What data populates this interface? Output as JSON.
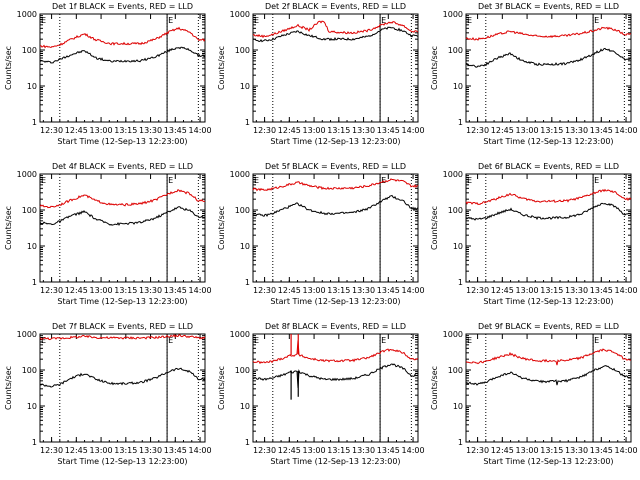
{
  "chart_data": [
    {
      "type": "line",
      "title": "Det 1f BLACK = Events, RED = LLD",
      "xlabel": "Start Time (12-Sep-13 12:23:00)",
      "ylabel": "Counts/sec",
      "yscale": "log",
      "ylim": [
        1,
        1000
      ],
      "xlim": [
        12.383,
        14.05
      ],
      "x_ticks": [
        "12:30",
        "12:45",
        "13:00",
        "13:15",
        "13:30",
        "13:45",
        "14:00"
      ],
      "y_ticks": [
        "1",
        "10",
        "100",
        "1000"
      ],
      "markers": {
        "E": [
          12.383,
          13.667
        ],
        "dotted_lines": [
          12.583,
          13.667,
          13.983
        ]
      },
      "series": [
        {
          "name": "Events",
          "color": "#000000",
          "x": [
            12.383,
            12.5,
            12.583,
            12.7,
            12.833,
            12.95,
            13.1,
            13.25,
            13.4,
            13.55,
            13.7,
            13.783,
            13.9,
            13.983
          ],
          "values": [
            50,
            45,
            55,
            75,
            95,
            60,
            48,
            50,
            50,
            65,
            100,
            120,
            100,
            70
          ]
        },
        {
          "name": "LLD",
          "color": "#dd0000",
          "x": [
            12.383,
            12.5,
            12.583,
            12.7,
            12.833,
            12.95,
            13.1,
            13.25,
            13.4,
            13.55,
            13.7,
            13.783,
            13.9,
            13.983
          ],
          "values": [
            130,
            120,
            140,
            200,
            280,
            190,
            150,
            150,
            150,
            200,
            330,
            400,
            310,
            190
          ]
        }
      ]
    },
    {
      "type": "line",
      "title": "Det 2f BLACK = Events, RED = LLD",
      "xlabel": "Start Time (12-Sep-13 12:23:00)",
      "ylabel": "Counts/sec",
      "yscale": "log",
      "ylim": [
        1,
        1000
      ],
      "xlim": [
        12.383,
        14.05
      ],
      "x_ticks": [
        "12:30",
        "12:45",
        "13:00",
        "13:15",
        "13:30",
        "13:45",
        "14:00"
      ],
      "y_ticks": [
        "1",
        "10",
        "100",
        "1000"
      ],
      "markers": {
        "E": [
          12.383,
          13.667
        ],
        "dotted_lines": [
          12.583,
          13.667,
          13.983
        ]
      },
      "series": [
        {
          "name": "Events",
          "color": "#000000",
          "x": [
            12.383,
            12.5,
            12.583,
            12.7,
            12.833,
            12.95,
            13.1,
            13.25,
            13.4,
            13.55,
            13.7,
            13.783,
            13.9,
            13.983
          ],
          "values": [
            190,
            180,
            200,
            260,
            330,
            250,
            200,
            200,
            200,
            240,
            380,
            420,
            340,
            250
          ]
        },
        {
          "name": "LLD",
          "color": "#dd0000",
          "x": [
            12.383,
            12.5,
            12.583,
            12.7,
            12.833,
            12.95,
            13.05,
            13.1,
            13.15,
            13.25,
            13.4,
            13.55,
            13.7,
            13.783,
            13.9,
            13.983
          ],
          "values": [
            260,
            240,
            270,
            350,
            480,
            360,
            600,
            620,
            330,
            310,
            300,
            350,
            520,
            600,
            480,
            330
          ]
        }
      ]
    },
    {
      "type": "line",
      "title": "Det 3f BLACK = Events, RED = LLD",
      "xlabel": "Start Time (12-Sep-13 12:23:00)",
      "ylabel": "Counts/sec",
      "yscale": "log",
      "ylim": [
        1,
        1000
      ],
      "xlim": [
        12.383,
        14.05
      ],
      "x_ticks": [
        "12:30",
        "12:45",
        "13:00",
        "13:15",
        "13:30",
        "13:45",
        "14:00"
      ],
      "y_ticks": [
        "1",
        "10",
        "100",
        "1000"
      ],
      "markers": {
        "E": [
          12.383,
          13.667
        ],
        "dotted_lines": [
          12.583,
          13.667,
          13.983
        ]
      },
      "series": [
        {
          "name": "Events",
          "color": "#000000",
          "x": [
            12.383,
            12.5,
            12.583,
            12.7,
            12.833,
            12.95,
            13.1,
            13.25,
            13.4,
            13.55,
            13.7,
            13.783,
            13.9,
            13.983
          ],
          "values": [
            40,
            35,
            40,
            60,
            80,
            50,
            40,
            40,
            42,
            55,
            85,
            110,
            85,
            55
          ]
        },
        {
          "name": "LLD",
          "color": "#dd0000",
          "x": [
            12.383,
            12.5,
            12.583,
            12.7,
            12.833,
            12.95,
            13.1,
            13.25,
            13.4,
            13.55,
            13.7,
            13.783,
            13.9,
            13.983
          ],
          "values": [
            210,
            200,
            220,
            270,
            330,
            280,
            240,
            240,
            250,
            290,
            360,
            420,
            360,
            270
          ]
        }
      ]
    },
    {
      "type": "line",
      "title": "Det 4f BLACK = Events, RED = LLD",
      "xlabel": "Start Time (12-Sep-13 12:23:00)",
      "ylabel": "Counts/sec",
      "yscale": "log",
      "ylim": [
        1,
        1000
      ],
      "xlim": [
        12.383,
        14.05
      ],
      "x_ticks": [
        "12:30",
        "12:45",
        "13:00",
        "13:15",
        "13:30",
        "13:45",
        "14:00"
      ],
      "y_ticks": [
        "1",
        "10",
        "100",
        "1000"
      ],
      "markers": {
        "E": [
          12.383,
          13.667
        ],
        "dotted_lines": [
          12.583,
          13.667,
          13.983
        ]
      },
      "series": [
        {
          "name": "Events",
          "color": "#000000",
          "x": [
            12.383,
            12.5,
            12.583,
            12.7,
            12.833,
            12.95,
            13.1,
            13.25,
            13.4,
            13.55,
            13.7,
            13.783,
            13.9,
            13.983
          ],
          "values": [
            45,
            40,
            48,
            70,
            90,
            55,
            40,
            42,
            45,
            60,
            95,
            120,
            95,
            65
          ]
        },
        {
          "name": "LLD",
          "color": "#dd0000",
          "x": [
            12.383,
            12.5,
            12.583,
            12.7,
            12.833,
            12.95,
            13.1,
            13.25,
            13.4,
            13.55,
            13.7,
            13.783,
            13.9,
            13.983
          ],
          "values": [
            130,
            120,
            140,
            190,
            260,
            180,
            140,
            140,
            150,
            190,
            300,
            360,
            280,
            180
          ]
        }
      ]
    },
    {
      "type": "line",
      "title": "Det 5f BLACK = Events, RED = LLD",
      "xlabel": "Start Time (12-Sep-13 12:23:00)",
      "ylabel": "Counts/sec",
      "yscale": "log",
      "ylim": [
        1,
        1000
      ],
      "xlim": [
        12.383,
        14.05
      ],
      "x_ticks": [
        "12:30",
        "12:45",
        "13:00",
        "13:15",
        "13:30",
        "13:45",
        "14:00"
      ],
      "y_ticks": [
        "1",
        "10",
        "100",
        "1000"
      ],
      "markers": {
        "E": [
          12.383,
          13.667
        ],
        "dotted_lines": [
          12.583,
          13.667,
          13.983
        ]
      },
      "series": [
        {
          "name": "Events",
          "color": "#000000",
          "x": [
            12.383,
            12.5,
            12.583,
            12.7,
            12.833,
            12.95,
            13.1,
            13.25,
            13.4,
            13.55,
            13.7,
            13.783,
            13.9,
            13.983
          ],
          "values": [
            75,
            70,
            80,
            110,
            150,
            100,
            80,
            80,
            85,
            110,
            190,
            240,
            180,
            110
          ]
        },
        {
          "name": "LLD",
          "color": "#dd0000",
          "x": [
            12.383,
            12.5,
            12.583,
            12.7,
            12.833,
            12.95,
            13.1,
            13.25,
            13.4,
            13.55,
            13.7,
            13.783,
            13.9,
            13.983
          ],
          "values": [
            380,
            360,
            390,
            470,
            580,
            470,
            400,
            400,
            410,
            470,
            620,
            700,
            620,
            460
          ]
        }
      ]
    },
    {
      "type": "line",
      "title": "Det 6f BLACK = Events, RED = LLD",
      "xlabel": "Start Time (12-Sep-13 12:23:00)",
      "ylabel": "Counts/sec",
      "yscale": "log",
      "ylim": [
        1,
        1000
      ],
      "xlim": [
        12.383,
        14.05
      ],
      "x_ticks": [
        "12:30",
        "12:45",
        "13:00",
        "13:15",
        "13:30",
        "13:45",
        "14:00"
      ],
      "y_ticks": [
        "1",
        "10",
        "100",
        "1000"
      ],
      "markers": {
        "E": [
          12.383,
          13.667
        ],
        "dotted_lines": [
          12.583,
          13.667,
          13.983
        ]
      },
      "series": [
        {
          "name": "Events",
          "color": "#000000",
          "x": [
            12.383,
            12.5,
            12.583,
            12.7,
            12.833,
            12.95,
            13.1,
            13.25,
            13.4,
            13.55,
            13.7,
            13.783,
            13.9,
            13.983
          ],
          "values": [
            60,
            55,
            60,
            80,
            105,
            75,
            60,
            60,
            62,
            78,
            130,
            160,
            120,
            75
          ]
        },
        {
          "name": "LLD",
          "color": "#dd0000",
          "x": [
            12.383,
            12.5,
            12.583,
            12.7,
            12.833,
            12.95,
            13.1,
            13.25,
            13.4,
            13.55,
            13.7,
            13.783,
            13.9,
            13.983
          ],
          "values": [
            160,
            150,
            165,
            210,
            280,
            210,
            175,
            175,
            180,
            220,
            310,
            360,
            300,
            200
          ]
        }
      ]
    },
    {
      "type": "line",
      "title": "Det 7f BLACK = Events, RED = LLD",
      "xlabel": "Start Time (12-Sep-13 12:23:00)",
      "ylabel": "Counts/sec",
      "yscale": "log",
      "ylim": [
        1,
        1000
      ],
      "xlim": [
        12.383,
        14.05
      ],
      "x_ticks": [
        "12:30",
        "12:45",
        "13:00",
        "13:15",
        "13:30",
        "13:45",
        "14:00"
      ],
      "y_ticks": [
        "1",
        "10",
        "100",
        "1000"
      ],
      "markers": {
        "E": [
          12.383,
          13.667
        ],
        "dotted_lines": [
          12.583,
          13.667,
          13.983
        ]
      },
      "series": [
        {
          "name": "Events",
          "color": "#000000",
          "x": [
            12.383,
            12.5,
            12.583,
            12.7,
            12.833,
            12.95,
            13.1,
            13.25,
            13.4,
            13.55,
            13.7,
            13.783,
            13.9,
            13.983
          ],
          "values": [
            40,
            35,
            40,
            60,
            80,
            55,
            42,
            42,
            45,
            60,
            95,
            110,
            90,
            55
          ]
        },
        {
          "name": "LLD",
          "color": "#dd0000",
          "x": [
            12.383,
            12.5,
            12.583,
            12.7,
            12.833,
            12.95,
            13.1,
            13.25,
            13.4,
            13.55,
            13.7,
            13.783,
            13.9,
            13.983
          ],
          "values": [
            760,
            740,
            760,
            800,
            860,
            800,
            780,
            780,
            780,
            800,
            870,
            900,
            850,
            780
          ]
        }
      ]
    },
    {
      "type": "line",
      "title": "Det 8f BLACK = Events, RED = LLD",
      "xlabel": "Start Time (12-Sep-13 12:23:00)",
      "ylabel": "Counts/sec",
      "yscale": "log",
      "ylim": [
        1,
        1000
      ],
      "xlim": [
        12.383,
        14.05
      ],
      "x_ticks": [
        "12:30",
        "12:45",
        "13:00",
        "13:15",
        "13:30",
        "13:45",
        "14:00"
      ],
      "y_ticks": [
        "1",
        "10",
        "100",
        "1000"
      ],
      "markers": {
        "E": [
          12.383,
          13.667
        ],
        "dotted_lines": [
          12.583,
          13.667,
          13.983
        ]
      },
      "series": [
        {
          "name": "Events",
          "color": "#000000",
          "x": [
            12.383,
            12.5,
            12.583,
            12.7,
            12.767,
            12.768,
            12.77,
            12.833,
            12.84,
            12.842,
            12.85,
            12.95,
            13.1,
            13.25,
            13.4,
            13.55,
            13.7,
            13.783,
            13.9,
            13.983
          ],
          "values": [
            60,
            55,
            60,
            75,
            90,
            15,
            85,
            95,
            18,
            100,
            90,
            70,
            55,
            55,
            58,
            75,
            120,
            150,
            110,
            70
          ]
        },
        {
          "name": "LLD",
          "color": "#dd0000",
          "x": [
            12.383,
            12.5,
            12.583,
            12.7,
            12.767,
            12.768,
            12.77,
            12.833,
            12.84,
            12.842,
            12.85,
            12.95,
            13.1,
            13.25,
            13.4,
            13.55,
            13.7,
            13.783,
            13.9,
            13.983
          ],
          "values": [
            170,
            160,
            175,
            220,
            260,
            1000,
            250,
            270,
            1000,
            275,
            260,
            210,
            180,
            180,
            185,
            220,
            330,
            380,
            300,
            200
          ]
        }
      ]
    },
    {
      "type": "line",
      "title": "Det 9f BLACK = Events, RED = LLD",
      "xlabel": "Start Time (12-Sep-13 12:23:00)",
      "ylabel": "Counts/sec",
      "yscale": "log",
      "ylim": [
        1,
        1000
      ],
      "xlim": [
        12.383,
        14.05
      ],
      "x_ticks": [
        "12:30",
        "12:45",
        "13:00",
        "13:15",
        "13:30",
        "13:45",
        "14:00"
      ],
      "y_ticks": [
        "1",
        "10",
        "100",
        "1000"
      ],
      "markers": {
        "E": [
          12.383,
          13.667
        ],
        "dotted_lines": [
          12.583,
          13.667,
          13.983
        ]
      },
      "series": [
        {
          "name": "Events",
          "color": "#000000",
          "x": [
            12.383,
            12.5,
            12.583,
            12.7,
            12.833,
            12.95,
            13.1,
            13.25,
            13.3,
            13.301,
            13.31,
            13.4,
            13.55,
            13.7,
            13.783,
            13.9,
            13.983
          ],
          "values": [
            45,
            40,
            45,
            65,
            85,
            60,
            48,
            48,
            50,
            35,
            50,
            50,
            65,
            105,
            130,
            100,
            65
          ]
        },
        {
          "name": "LLD",
          "color": "#dd0000",
          "x": [
            12.383,
            12.5,
            12.583,
            12.7,
            12.833,
            12.95,
            13.1,
            13.25,
            13.3,
            13.301,
            13.31,
            13.4,
            13.55,
            13.7,
            13.783,
            13.9,
            13.983
          ],
          "values": [
            170,
            160,
            175,
            220,
            280,
            210,
            180,
            180,
            185,
            140,
            185,
            185,
            220,
            320,
            370,
            300,
            200
          ]
        }
      ]
    }
  ]
}
